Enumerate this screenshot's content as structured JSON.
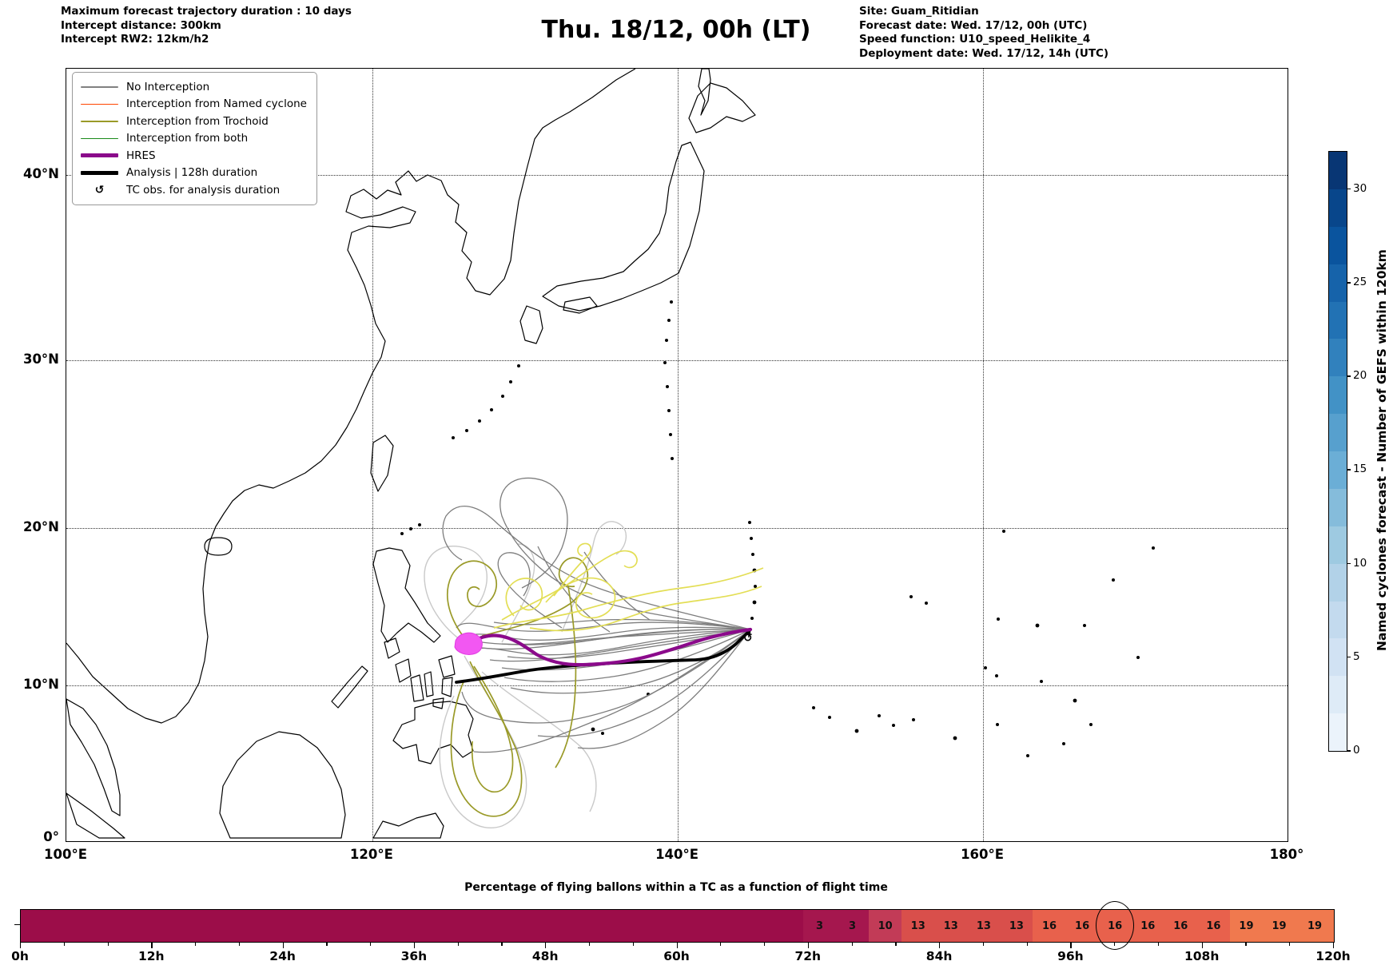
{
  "header": {
    "left": {
      "line1": "Maximum forecast trajectory duration : 10 days",
      "line2": "Intercept distance: 300km",
      "line3": "Intercept RW2: 12km/h2"
    },
    "title": "Thu. 18/12, 00h (LT)",
    "right": {
      "line1": "Site: Guam_Ritidian",
      "line2": "Forecast date: Wed. 17/12, 00h (UTC)",
      "line3": "Speed function: U10_speed_Helikite_4",
      "line4": "Deployment date: Wed. 17/12, 14h (UTC)"
    }
  },
  "map": {
    "x_ticks": [
      {
        "label": "100°E",
        "f": 0.0
      },
      {
        "label": "120°E",
        "f": 0.2506
      },
      {
        "label": "140°E",
        "f": 0.5007
      },
      {
        "label": "160°E",
        "f": 0.7507
      },
      {
        "label": "180°",
        "f": 1.0
      }
    ],
    "y_ticks": [
      {
        "label": "40°N",
        "f": 0.1376
      },
      {
        "label": "30°N",
        "f": 0.3773
      },
      {
        "label": "20°N",
        "f": 0.5946
      },
      {
        "label": "10°N",
        "f": 0.7984
      },
      {
        "label": "0°",
        "f": 0.9959
      }
    ]
  },
  "legend": {
    "items": [
      {
        "label": "No Interception",
        "type": "line",
        "color": "#808080",
        "lw": 1.5
      },
      {
        "label": "Interception from Named cyclone",
        "type": "line",
        "color": "#ff4500",
        "lw": 1.5
      },
      {
        "label": "Interception from Trochoid",
        "type": "line",
        "color": "#9a9a28",
        "lw": 1.5
      },
      {
        "label": "Interception from both",
        "type": "line",
        "color": "#1a8a1a",
        "lw": 1.5
      },
      {
        "label": "HRES",
        "type": "line",
        "color": "#8b0a8b",
        "lw": 5
      },
      {
        "label": "Analysis | 128h duration",
        "type": "line",
        "color": "#000000",
        "lw": 5
      },
      {
        "label": "TC obs. for analysis duration",
        "type": "symbol",
        "symbol": "↺",
        "color": "#000000"
      }
    ]
  },
  "colorbar": {
    "label": "Named cyclones forecast - Number of GEFS within 120km",
    "vmin": 0,
    "vmax": 32,
    "ticks": [
      0,
      5,
      10,
      15,
      20,
      25,
      30
    ],
    "colors": [
      "#ebf3fb",
      "#deebf7",
      "#d1e2f3",
      "#c3daee",
      "#b2d2e8",
      "#9ecae1",
      "#85bcdb",
      "#6baed6",
      "#57a0ce",
      "#4292c6",
      "#3181bd",
      "#2272b4",
      "#1663aa",
      "#0a549e",
      "#08468b",
      "#083674"
    ]
  },
  "flight_bar": {
    "title": "Percentage of flying ballons within a TC as a function of flight time",
    "hours_max": 120,
    "axis_labels": [
      "0h",
      "12h",
      "24h",
      "36h",
      "48h",
      "60h",
      "72h",
      "84h",
      "96h",
      "108h",
      "120h"
    ],
    "base_color": "#9c0d49",
    "circled_hour": 100,
    "cells": [
      {
        "start": 71.5,
        "end": 74.5,
        "value": 3,
        "color": "#a5174e"
      },
      {
        "start": 74.5,
        "end": 77.5,
        "value": 3,
        "color": "#a5174e"
      },
      {
        "start": 77.5,
        "end": 80.5,
        "value": 10,
        "color": "#c23b57"
      },
      {
        "start": 80.5,
        "end": 83.5,
        "value": 13,
        "color": "#d94f4b"
      },
      {
        "start": 83.5,
        "end": 86.5,
        "value": 13,
        "color": "#d94f4b"
      },
      {
        "start": 86.5,
        "end": 89.5,
        "value": 13,
        "color": "#d94f4b"
      },
      {
        "start": 89.5,
        "end": 92.5,
        "value": 13,
        "color": "#d94f4b"
      },
      {
        "start": 92.5,
        "end": 95.5,
        "value": 16,
        "color": "#e8614c"
      },
      {
        "start": 95.5,
        "end": 98.5,
        "value": 16,
        "color": "#e8614c"
      },
      {
        "start": 98.5,
        "end": 101.5,
        "value": 16,
        "color": "#e8614c"
      },
      {
        "start": 101.5,
        "end": 104.5,
        "value": 16,
        "color": "#e8614c"
      },
      {
        "start": 104.5,
        "end": 107.5,
        "value": 16,
        "color": "#e8614c"
      },
      {
        "start": 107.5,
        "end": 110.5,
        "value": 16,
        "color": "#e8614c"
      },
      {
        "start": 110.5,
        "end": 113.5,
        "value": 19,
        "color": "#f0794e"
      },
      {
        "start": 113.5,
        "end": 116.5,
        "value": 19,
        "color": "#f0794e"
      },
      {
        "start": 116.5,
        "end": 120,
        "value": 19,
        "color": "#f0794e"
      }
    ]
  },
  "chart_data": [
    {
      "type": "line",
      "subtype": "trajectory-map",
      "title": "Thu. 18/12, 00h (LT)",
      "extent": {
        "lon": [
          100,
          180
        ],
        "lat": [
          0,
          45
        ]
      },
      "projection": "mercator",
      "grid": true,
      "legend_position": "upper left",
      "deployment_site": {
        "name": "Guam_Ritidian",
        "lon": 144.85,
        "lat": 13.65
      },
      "series": [
        {
          "name": "HRES",
          "color": "#8b0a8b",
          "lon": [
            126.2,
            128.4,
            130.8,
            134.0,
            137.6,
            141.8,
            144.85
          ],
          "lat": [
            12.6,
            13.3,
            12.0,
            11.3,
            11.7,
            13.0,
            13.65
          ]
        },
        {
          "name": "Analysis | 128h duration",
          "color": "#000000",
          "lon": [
            125.5,
            130.4,
            135.9,
            141.3,
            143.9,
            144.85
          ],
          "lat": [
            10.2,
            10.95,
            11.4,
            11.6,
            12.7,
            13.65
          ]
        },
        {
          "name": "No Interception (GEFS ensemble, ~30 members)",
          "color": "#808080",
          "description": "spaghetti of balloon trajectories from Guam westward to ~125-128E, 8-18N"
        },
        {
          "name": "Interception from Trochoid",
          "color": "#9a9a28",
          "description": "looping trajectories 125-133E between 4N and 18N"
        }
      ],
      "annotations": [
        "magenta TC position cluster near 126.2E 12.7N",
        "TC obs symbol ↺ at deployment site"
      ]
    },
    {
      "type": "heatmap",
      "title": "Percentage of flying ballons within a TC as a function of flight time",
      "xlabel": "flight time",
      "xlim": [
        0,
        120
      ],
      "x_hours": [
        73,
        76,
        79,
        82,
        85,
        88,
        91,
        94,
        97,
        100,
        103,
        106,
        109,
        112,
        115,
        118
      ],
      "values": [
        3,
        3,
        10,
        13,
        13,
        13,
        13,
        16,
        16,
        16,
        16,
        16,
        16,
        19,
        19,
        19
      ],
      "circled_x": 100,
      "note": "bar before 71.5h has no labelled cells (dark crimson)"
    }
  ]
}
